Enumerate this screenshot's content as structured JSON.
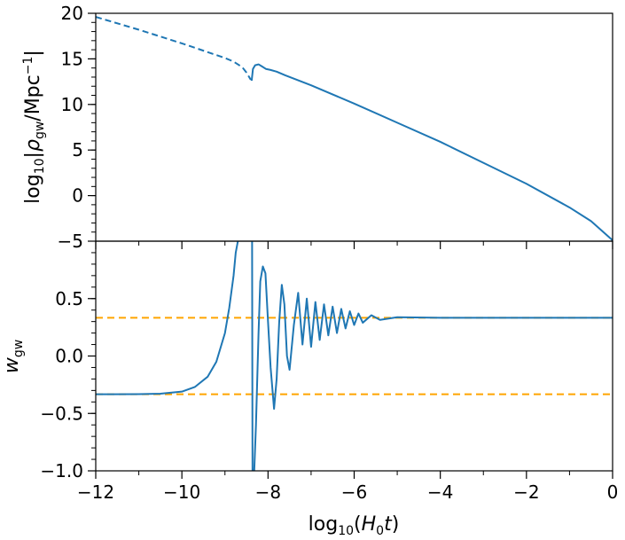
{
  "chart_data": [
    {
      "type": "line",
      "ylabel": "log10|ρgw/Mpc−1|",
      "ylim": [
        -5,
        20
      ],
      "xlim": [
        -12,
        0
      ],
      "yticks": [
        20,
        15,
        10,
        5,
        0,
        -5
      ],
      "ytick_labels": [
        "20",
        "15",
        "10",
        "5",
        "0",
        "−5"
      ],
      "grid": false,
      "series": [
        {
          "style": "dashed",
          "color": "#1f77b4",
          "x": [
            -12,
            -11,
            -10,
            -9,
            -8.8,
            -8.6,
            -8.5,
            -8.4
          ],
          "y": [
            19.6,
            18.2,
            16.7,
            15.1,
            14.7,
            14.1,
            13.5,
            12.7
          ]
        },
        {
          "style": "solid",
          "color": "#1f77b4",
          "x": [
            -8.38,
            -8.35,
            -8.3,
            -8.22,
            -8.15,
            -8.05,
            -7.95,
            -7.8,
            -7.6,
            -7.0,
            -6.0,
            -5.0,
            -4.0,
            -3.0,
            -2.0,
            -1.0,
            -0.5,
            0
          ],
          "y": [
            12.6,
            13.9,
            14.3,
            14.4,
            14.2,
            13.9,
            13.8,
            13.6,
            13.2,
            12.1,
            10.1,
            8.0,
            5.9,
            3.6,
            1.3,
            -1.3,
            -2.8,
            -4.9
          ]
        }
      ]
    },
    {
      "type": "line",
      "xlabel": "log10(H0t)",
      "ylabel": "wgw",
      "xlim": [
        -12,
        0
      ],
      "ylim": [
        -1.0,
        1.0
      ],
      "xticks": [
        -12,
        -10,
        -8,
        -6,
        -4,
        -2,
        0
      ],
      "xtick_labels": [
        "−12",
        "−10",
        "−8",
        "−6",
        "−4",
        "−2",
        "0"
      ],
      "yticks": [
        0.5,
        0.0,
        -0.5,
        -1.0
      ],
      "ytick_labels": [
        "0.5",
        "0.0",
        "−0.5",
        "−1.0"
      ],
      "grid": false,
      "reference_lines": [
        {
          "y": 0.3333,
          "style": "dashed",
          "color": "#ffa500"
        },
        {
          "y": -0.3333,
          "style": "dashed",
          "color": "#ffa500"
        }
      ],
      "series": [
        {
          "style": "solid",
          "color": "#1f77b4",
          "x": [
            -12,
            -11,
            -10.5,
            -10,
            -9.7,
            -9.4,
            -9.2,
            -9.0,
            -8.9,
            -8.8,
            -8.75,
            -8.7,
            -8.68
          ],
          "y": [
            -0.333,
            -0.332,
            -0.328,
            -0.31,
            -0.27,
            -0.18,
            -0.05,
            0.2,
            0.42,
            0.7,
            0.9,
            1.0,
            1.0
          ]
        },
        {
          "style": "solid",
          "color": "#1f77b4",
          "note_free": true,
          "x": [
            -8.37,
            -8.36,
            -8.32,
            -8.28,
            -8.22,
            -8.18,
            -8.12,
            -8.06,
            -8.0,
            -7.94,
            -7.86,
            -7.8,
            -7.74,
            -7.68,
            -7.62,
            -7.56,
            -7.5,
            -7.4,
            -7.3,
            -7.2,
            -7.1,
            -7.0,
            -6.9,
            -6.8,
            -6.7,
            -6.6,
            -6.5,
            -6.4,
            -6.3,
            -6.2,
            -6.1,
            -6.0,
            -5.9,
            -5.8,
            -5.6,
            -5.4,
            -5.0,
            -4.0,
            -2.0,
            0
          ],
          "y": [
            1.0,
            -1.0,
            -1.0,
            -0.6,
            0.2,
            0.65,
            0.78,
            0.72,
            0.3,
            -0.1,
            -0.46,
            -0.2,
            0.3,
            0.62,
            0.45,
            0.0,
            -0.12,
            0.27,
            0.55,
            0.1,
            0.5,
            0.08,
            0.47,
            0.14,
            0.45,
            0.18,
            0.43,
            0.2,
            0.41,
            0.24,
            0.39,
            0.27,
            0.37,
            0.29,
            0.355,
            0.315,
            0.338,
            0.333,
            0.333,
            0.333
          ]
        }
      ]
    }
  ]
}
